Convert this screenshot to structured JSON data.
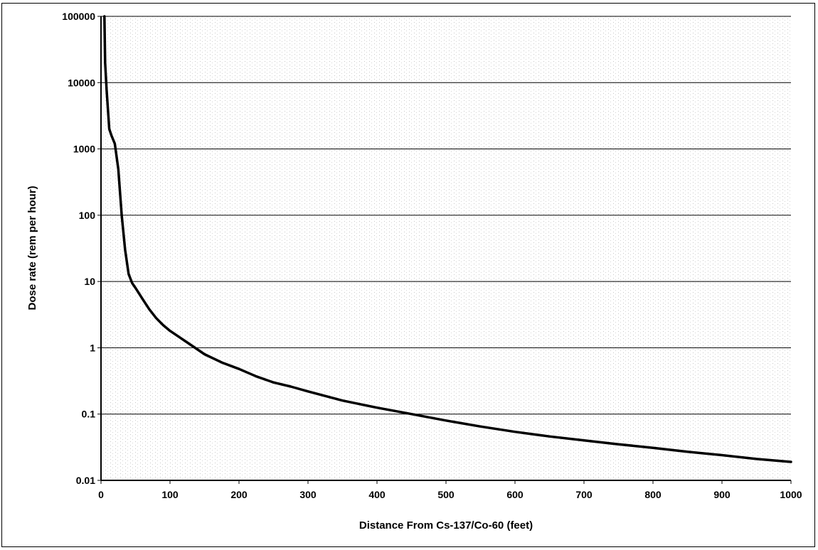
{
  "chart_data": {
    "type": "line",
    "title": "",
    "xlabel": "Distance From Cs-137/Co-60 (feet)",
    "ylabel": "Dose rate (rem per hour)",
    "xlim": [
      0,
      1000
    ],
    "ylim": [
      0.01,
      100000
    ],
    "yscale": "log",
    "grid": "horizontal major lines",
    "legend": "none",
    "x_ticks": [
      "0",
      "100",
      "200",
      "300",
      "400",
      "500",
      "600",
      "700",
      "800",
      "900",
      "1000"
    ],
    "y_ticks": [
      "0.01",
      "0.1",
      "1",
      "10",
      "100",
      "1000",
      "10000",
      "100000"
    ],
    "line_color": "#000000",
    "series": [
      {
        "x": [
          5,
          6,
          8,
          10,
          12,
          15,
          20,
          25,
          30,
          35,
          40,
          45,
          50,
          60,
          70,
          80,
          90,
          100,
          125,
          150,
          175,
          200,
          225,
          250,
          275,
          300,
          350,
          400,
          450,
          500,
          550,
          600,
          650,
          700,
          750,
          800,
          850,
          900,
          950,
          1000
        ],
        "y": [
          100000,
          20000,
          8000,
          4000,
          2000,
          1600,
          1200,
          500,
          100,
          30,
          13,
          9.5,
          8,
          5.5,
          3.8,
          2.8,
          2.2,
          1.8,
          1.2,
          0.8,
          0.6,
          0.48,
          0.37,
          0.3,
          0.26,
          0.22,
          0.16,
          0.125,
          0.1,
          0.08,
          0.065,
          0.054,
          0.046,
          0.04,
          0.035,
          0.031,
          0.027,
          0.024,
          0.021,
          0.019
        ]
      }
    ]
  }
}
